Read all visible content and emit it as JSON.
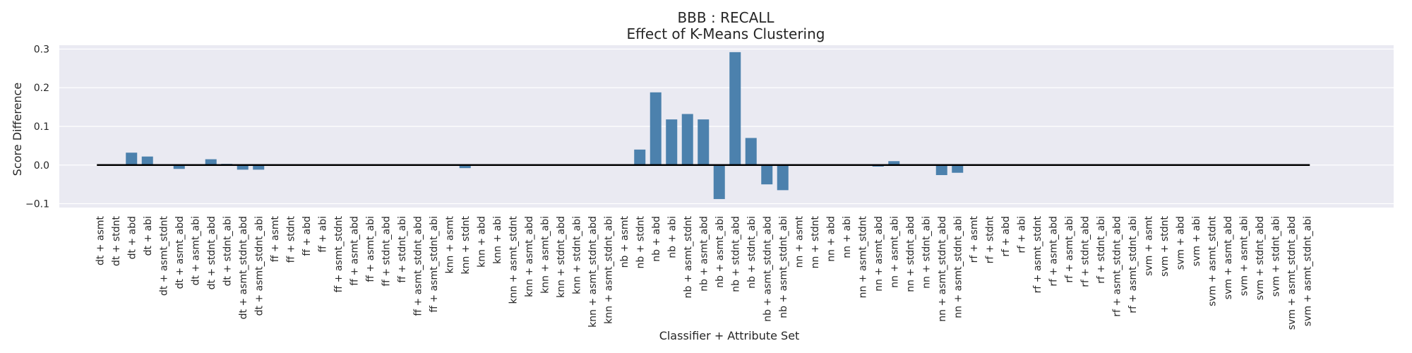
{
  "chart_data": {
    "type": "bar",
    "title": "BBB : RECALL",
    "subtitle": "Effect of K-Means Clustering",
    "xlabel": "Classifier + Attribute Set",
    "ylabel": "Score Difference",
    "ylim": [
      -0.11,
      0.31
    ],
    "yticks": [
      "−0.1",
      "0.0",
      "0.1",
      "0.2",
      "0.3"
    ],
    "ytick_values": [
      -0.1,
      0.0,
      0.1,
      0.2,
      0.3
    ],
    "grid": true,
    "bar_color": "#4c81ad",
    "background_color": "#eaeaf2",
    "zero_line_color": "#000000",
    "categories": [
      "dt + asmt",
      "dt + stdnt",
      "dt + abd",
      "dt + abi",
      "dt + asmt_stdnt",
      "dt + asmt_abd",
      "dt + asmt_abi",
      "dt + stdnt_abd",
      "dt + stdnt_abi",
      "dt + asmt_stdnt_abd",
      "dt + asmt_stdnt_abi",
      "ff + asmt",
      "ff + stdnt",
      "ff + abd",
      "ff + abi",
      "ff + asmt_stdnt",
      "ff + asmt_abd",
      "ff + asmt_abi",
      "ff + stdnt_abd",
      "ff + stdnt_abi",
      "ff + asmt_stdnt_abd",
      "ff + asmt_stdnt_abi",
      "knn + asmt",
      "knn + stdnt",
      "knn + abd",
      "knn + abi",
      "knn + asmt_stdnt",
      "knn + asmt_abd",
      "knn + asmt_abi",
      "knn + stdnt_abd",
      "knn + stdnt_abi",
      "knn + asmt_stdnt_abd",
      "knn + asmt_stdnt_abi",
      "nb + asmt",
      "nb + stdnt",
      "nb + abd",
      "nb + abi",
      "nb + asmt_stdnt",
      "nb + asmt_abd",
      "nb + asmt_abi",
      "nb + stdnt_abd",
      "nb + stdnt_abi",
      "nb + asmt_stdnt_abd",
      "nb + asmt_stdnt_abi",
      "nn + asmt",
      "nn + stdnt",
      "nn + abd",
      "nn + abi",
      "nn + asmt_stdnt",
      "nn + asmt_abd",
      "nn + asmt_abi",
      "nn + stdnt_abd",
      "nn + stdnt_abi",
      "nn + asmt_stdnt_abd",
      "nn + asmt_stdnt_abi",
      "rf + asmt",
      "rf + stdnt",
      "rf + abd",
      "rf + abi",
      "rf + asmt_stdnt",
      "rf + asmt_abd",
      "rf + asmt_abi",
      "rf + stdnt_abd",
      "rf + stdnt_abi",
      "rf + asmt_stdnt_abd",
      "rf + asmt_stdnt_abi",
      "svm + asmt",
      "svm + stdnt",
      "svm + abd",
      "svm + abi",
      "svm + asmt_stdnt",
      "svm + asmt_abd",
      "svm + asmt_abi",
      "svm + stdnt_abd",
      "svm + stdnt_abi",
      "svm + asmt_stdnt_abd",
      "svm + asmt_stdnt_abi"
    ],
    "values": [
      0.0,
      0.0,
      0.032,
      0.022,
      0.0,
      -0.01,
      0.0,
      0.015,
      0.003,
      -0.012,
      -0.012,
      0.0,
      0.0,
      0.0,
      0.0,
      0.0,
      0.0,
      0.0,
      0.0,
      0.0,
      0.0,
      0.0,
      0.0,
      -0.008,
      0.0,
      0.0,
      0.0,
      0.0,
      0.0,
      0.0,
      0.0,
      0.0,
      0.0,
      0.0,
      0.04,
      0.188,
      0.118,
      0.132,
      0.118,
      -0.088,
      0.292,
      0.07,
      -0.05,
      -0.065,
      0.0,
      0.0,
      0.0,
      0.0,
      0.0,
      -0.004,
      0.01,
      0.0,
      0.002,
      -0.026,
      -0.02,
      0.0,
      0.0,
      0.0,
      0.0,
      0.0,
      0.0,
      0.0,
      0.0,
      0.0,
      0.0,
      0.0,
      0.0,
      0.0,
      0.0,
      0.0,
      0.0,
      0.0,
      0.0,
      0.0,
      0.0,
      0.0,
      0.0
    ]
  }
}
